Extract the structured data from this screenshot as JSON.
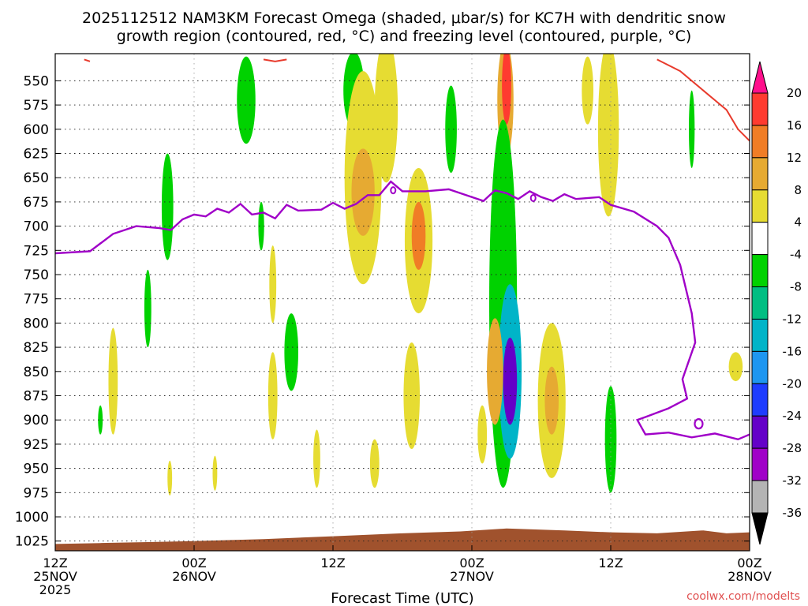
{
  "chart_data": {
    "type": "heatmap",
    "title_line1": "2025112512 NAM3KM Forecast Omega (shaded, μbar/s) for KC7H with dendritic snow",
    "title_line2": "growth region (contoured, red, °C) and freezing level (contoured, purple, °C)",
    "xlabel": "Forecast Time (UTC)",
    "credit": "coolwx.com/modelts",
    "x_range_hours": [
      0,
      60
    ],
    "y_range_hpa": [
      1035,
      522
    ],
    "y_ticks": [
      550,
      575,
      600,
      625,
      650,
      675,
      700,
      725,
      750,
      775,
      800,
      825,
      850,
      875,
      900,
      925,
      950,
      975,
      1000,
      1025
    ],
    "x_ticks": [
      {
        "h": 0,
        "time": "12Z",
        "date": "25NOV",
        "year": "2025"
      },
      {
        "h": 12,
        "time": "00Z",
        "date": "26NOV",
        "year": ""
      },
      {
        "h": 24,
        "time": "12Z",
        "date": "",
        "year": ""
      },
      {
        "h": 36,
        "time": "00Z",
        "date": "27NOV",
        "year": ""
      },
      {
        "h": 48,
        "time": "12Z",
        "date": "",
        "year": ""
      },
      {
        "h": 60,
        "time": "00Z",
        "date": "28NOV",
        "year": ""
      }
    ],
    "colorbar": {
      "labels": [
        "20",
        "16",
        "12",
        "8",
        "4",
        "-4",
        "-8",
        "-12",
        "-16",
        "-20",
        "-24",
        "-28",
        "-32",
        "-36"
      ],
      "colors": [
        "#ff0f8c",
        "#ff3b30",
        "#f07d26",
        "#e6aa32",
        "#e6dc32",
        "#ffffff",
        "#00d200",
        "#00be82",
        "#00b4c8",
        "#1e96f0",
        "#1e3cff",
        "#6400c8",
        "#a000c8",
        "#b4b4b4",
        "#000000"
      ]
    },
    "omega_blobs": [
      {
        "t": 16.5,
        "p": 570,
        "dt": 0.8,
        "dp": 45,
        "v": -6
      },
      {
        "t": 25.8,
        "p": 560,
        "dt": 0.9,
        "dp": 40,
        "v": -6
      },
      {
        "t": 34.2,
        "p": 600,
        "dt": 0.5,
        "dp": 45,
        "v": -6
      },
      {
        "t": 26.6,
        "p": 650,
        "dt": 1.6,
        "dp": 110,
        "v": 6
      },
      {
        "t": 26.6,
        "p": 665,
        "dt": 1.0,
        "dp": 45,
        "v": 11
      },
      {
        "t": 28.6,
        "p": 580,
        "dt": 1.0,
        "dp": 75,
        "v": 5
      },
      {
        "t": 31.4,
        "p": 715,
        "dt": 1.2,
        "dp": 75,
        "v": 6
      },
      {
        "t": 31.4,
        "p": 710,
        "dt": 0.6,
        "dp": 35,
        "v": 13
      },
      {
        "t": 38.9,
        "p": 570,
        "dt": 0.7,
        "dp": 60,
        "v": 9
      },
      {
        "t": 39.0,
        "p": 555,
        "dt": 0.4,
        "dp": 40,
        "v": 18
      },
      {
        "t": 38.7,
        "p": 780,
        "dt": 1.2,
        "dp": 190,
        "v": -7
      },
      {
        "t": 39.3,
        "p": 850,
        "dt": 1.0,
        "dp": 90,
        "v": -13
      },
      {
        "t": 39.3,
        "p": 860,
        "dt": 0.6,
        "dp": 45,
        "v": -26
      },
      {
        "t": 38.0,
        "p": 850,
        "dt": 0.7,
        "dp": 55,
        "v": 10
      },
      {
        "t": 42.9,
        "p": 880,
        "dt": 1.2,
        "dp": 80,
        "v": 6
      },
      {
        "t": 42.9,
        "p": 880,
        "dt": 0.6,
        "dp": 35,
        "v": 11
      },
      {
        "t": 47.8,
        "p": 600,
        "dt": 0.9,
        "dp": 90,
        "v": 6
      },
      {
        "t": 46.0,
        "p": 560,
        "dt": 0.5,
        "dp": 35,
        "v": 5
      },
      {
        "t": 48.0,
        "p": 920,
        "dt": 0.5,
        "dp": 55,
        "v": -7
      },
      {
        "t": 58.8,
        "p": 845,
        "dt": 0.6,
        "dp": 15,
        "v": 5
      },
      {
        "t": 9.7,
        "p": 680,
        "dt": 0.5,
        "dp": 55,
        "v": -6
      },
      {
        "t": 8.0,
        "p": 785,
        "dt": 0.3,
        "dp": 40,
        "v": -6
      },
      {
        "t": 5.0,
        "p": 860,
        "dt": 0.4,
        "dp": 55,
        "v": 5
      },
      {
        "t": 18.8,
        "p": 760,
        "dt": 0.3,
        "dp": 40,
        "v": 6
      },
      {
        "t": 20.4,
        "p": 830,
        "dt": 0.6,
        "dp": 40,
        "v": -6
      },
      {
        "t": 18.8,
        "p": 875,
        "dt": 0.4,
        "dp": 45,
        "v": 6
      },
      {
        "t": 30.8,
        "p": 875,
        "dt": 0.7,
        "dp": 55,
        "v": 5
      },
      {
        "t": 36.9,
        "p": 915,
        "dt": 0.4,
        "dp": 30,
        "v": 5
      },
      {
        "t": 27.6,
        "p": 945,
        "dt": 0.4,
        "dp": 25,
        "v": 5
      },
      {
        "t": 9.9,
        "p": 960,
        "dt": 0.2,
        "dp": 18,
        "v": 5
      },
      {
        "t": 13.8,
        "p": 955,
        "dt": 0.2,
        "dp": 18,
        "v": 5
      },
      {
        "t": 3.9,
        "p": 900,
        "dt": 0.2,
        "dp": 15,
        "v": -6
      },
      {
        "t": 22.6,
        "p": 940,
        "dt": 0.3,
        "dp": 30,
        "v": 5
      },
      {
        "t": 55.0,
        "p": 600,
        "dt": 0.25,
        "dp": 40,
        "v": -6
      },
      {
        "t": 17.8,
        "p": 700,
        "dt": 0.25,
        "dp": 25,
        "v": -6
      }
    ],
    "freezing_level": {
      "color": "#a000c8",
      "points": [
        [
          0,
          728
        ],
        [
          3,
          726
        ],
        [
          5,
          708
        ],
        [
          7,
          700
        ],
        [
          9,
          702
        ],
        [
          10,
          704
        ],
        [
          11,
          693
        ],
        [
          12,
          688
        ],
        [
          13,
          690
        ],
        [
          14,
          682
        ],
        [
          15,
          686
        ],
        [
          16,
          677
        ],
        [
          17,
          688
        ],
        [
          18,
          686
        ],
        [
          19,
          692
        ],
        [
          20,
          678
        ],
        [
          21,
          684
        ],
        [
          23,
          683
        ],
        [
          24,
          676
        ],
        [
          25,
          682
        ],
        [
          26,
          677
        ],
        [
          27,
          668
        ],
        [
          28,
          668
        ],
        [
          29,
          654
        ],
        [
          30,
          664
        ],
        [
          32,
          664
        ],
        [
          34,
          662
        ],
        [
          36,
          670
        ],
        [
          37,
          674
        ],
        [
          38,
          663
        ],
        [
          39,
          666
        ],
        [
          40,
          672
        ],
        [
          41,
          664
        ],
        [
          42,
          670
        ],
        [
          43,
          674
        ],
        [
          44,
          667
        ],
        [
          45,
          672
        ],
        [
          47,
          670
        ],
        [
          48,
          678
        ],
        [
          50,
          685
        ],
        [
          52,
          700
        ],
        [
          53,
          712
        ],
        [
          54,
          740
        ],
        [
          55,
          790
        ],
        [
          55.3,
          820
        ],
        [
          54.2,
          858
        ],
        [
          54.6,
          878
        ],
        [
          53,
          888
        ],
        [
          51,
          897
        ],
        [
          50.3,
          900
        ],
        [
          51,
          915
        ],
        [
          53,
          913
        ],
        [
          55,
          918
        ],
        [
          57,
          914
        ],
        [
          59,
          920
        ],
        [
          60,
          915
        ]
      ]
    },
    "dgz_contour": {
      "color": "#e83a2c",
      "top": [
        [
          2.5,
          528
        ],
        [
          3.0,
          530
        ]
      ],
      "top2": [
        [
          18,
          528
        ],
        [
          19,
          530
        ],
        [
          20,
          528
        ]
      ],
      "right": [
        [
          52,
          528
        ],
        [
          54,
          540
        ],
        [
          56,
          560
        ],
        [
          58,
          580
        ],
        [
          59,
          600
        ],
        [
          60,
          612
        ]
      ]
    },
    "ground_layer": {
      "color": "#a0522d",
      "points": [
        [
          0,
          1028
        ],
        [
          4,
          1027
        ],
        [
          8,
          1026
        ],
        [
          12,
          1025
        ],
        [
          18,
          1023
        ],
        [
          24,
          1020
        ],
        [
          30,
          1017
        ],
        [
          35,
          1015
        ],
        [
          39,
          1012
        ],
        [
          44,
          1014
        ],
        [
          48,
          1016
        ],
        [
          52,
          1017
        ],
        [
          56,
          1014
        ],
        [
          58,
          1017
        ],
        [
          60,
          1016
        ]
      ]
    }
  }
}
